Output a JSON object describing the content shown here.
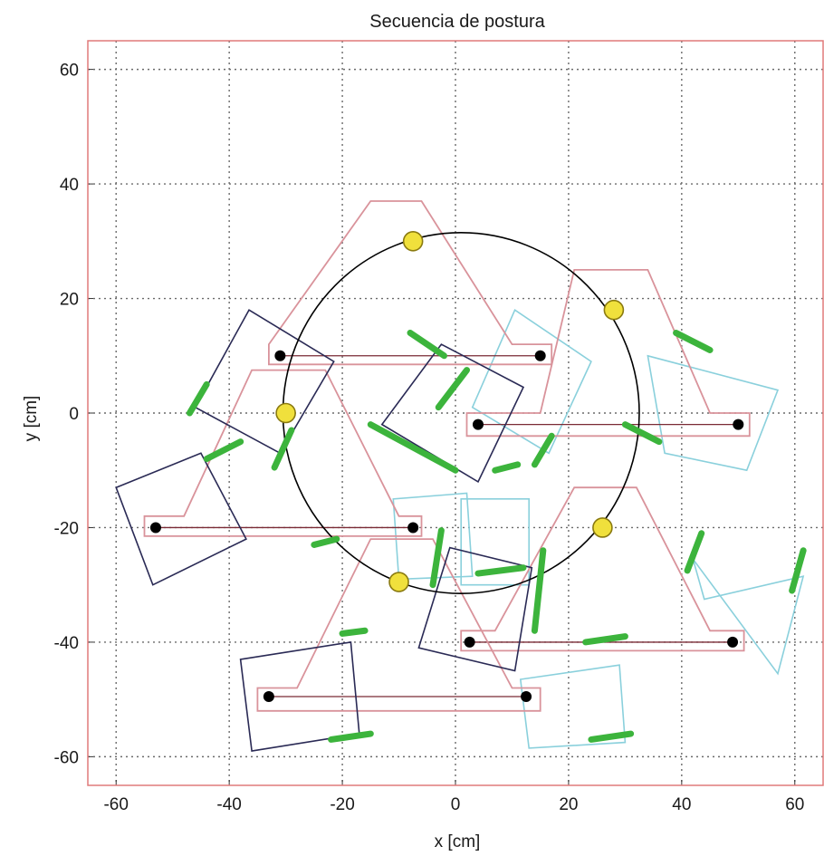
{
  "chart_data": {
    "type": "scatter",
    "title": "Secuencia de postura",
    "xlabel": "x [cm]",
    "ylabel": "y [cm]",
    "xlim": [
      -65,
      65
    ],
    "ylim": [
      -65,
      65
    ],
    "xticks": [
      -60,
      -40,
      -20,
      0,
      20,
      40,
      60
    ],
    "yticks": [
      -60,
      -40,
      -20,
      0,
      20,
      40,
      60
    ],
    "xtick_labels": [
      "-60",
      "-40",
      "-20",
      "0",
      "20",
      "40",
      "60"
    ],
    "ytick_labels": [
      "-60",
      "-40",
      "-20",
      "0",
      "20",
      "40",
      "60"
    ],
    "grid": true,
    "colors": {
      "frame": "#e07a7a",
      "body_outline": "#d9939b",
      "dark_square": "#2a2a55",
      "light_square": "#8ad0dc",
      "leg": "#3cb43c",
      "foot_marker": "#000000",
      "circle": "#000000",
      "circle_marker": "#f0e03c"
    },
    "reference_circle": {
      "center": [
        1,
        0
      ],
      "radius": 31.5
    },
    "circle_markers": [
      [
        -7.5,
        30
      ],
      [
        28,
        18
      ],
      [
        -30,
        0
      ],
      [
        26,
        -20
      ],
      [
        -10,
        -29.5
      ]
    ],
    "bodies": [
      {
        "outline": [
          [
            -33,
            12
          ],
          [
            -15,
            37
          ],
          [
            -6,
            37
          ],
          [
            10,
            12
          ],
          [
            17,
            12
          ],
          [
            17,
            8.5
          ],
          [
            -33,
            8.5
          ]
        ],
        "feet": [
          [
            -31,
            10
          ],
          [
            15,
            10
          ]
        ]
      },
      {
        "outline": [
          [
            -55,
            -18
          ],
          [
            -48,
            -18
          ],
          [
            -36,
            7.5
          ],
          [
            -23,
            7.5
          ],
          [
            -10,
            -18
          ],
          [
            -6,
            -18
          ],
          [
            -6,
            -21.5
          ],
          [
            -55,
            -21.5
          ]
        ],
        "feet": [
          [
            -53,
            -20
          ],
          [
            -7.5,
            -20
          ]
        ]
      },
      {
        "outline": [
          [
            2,
            0
          ],
          [
            15,
            0
          ],
          [
            21,
            25
          ],
          [
            34,
            25
          ],
          [
            45,
            0
          ],
          [
            52,
            0
          ],
          [
            52,
            -4
          ],
          [
            2,
            -4
          ]
        ],
        "feet": [
          [
            4,
            -2
          ],
          [
            50,
            -2
          ]
        ]
      },
      {
        "outline": [
          [
            1,
            -38
          ],
          [
            7,
            -38
          ],
          [
            21,
            -13
          ],
          [
            32,
            -13
          ],
          [
            45,
            -38
          ],
          [
            51,
            -38
          ],
          [
            51,
            -41.5
          ],
          [
            1,
            -41.5
          ]
        ],
        "feet": [
          [
            2.5,
            -40
          ],
          [
            49,
            -40
          ]
        ]
      },
      {
        "outline": [
          [
            -35,
            -48
          ],
          [
            -28,
            -48
          ],
          [
            -15,
            -22
          ],
          [
            -4,
            -22
          ],
          [
            10,
            -48
          ],
          [
            15,
            -48
          ],
          [
            15,
            -52
          ],
          [
            -35,
            -52
          ]
        ],
        "feet": [
          [
            -33,
            -49.5
          ],
          [
            12.5,
            -49.5
          ]
        ]
      }
    ],
    "dark_squares": [
      [
        [
          -36.5,
          18
        ],
        [
          -21.5,
          9
        ],
        [
          -31,
          -7
        ],
        [
          -46,
          1
        ]
      ],
      [
        [
          -13,
          -2
        ],
        [
          -2.5,
          12
        ],
        [
          12,
          4.5
        ],
        [
          4,
          -12
        ]
      ],
      [
        [
          -60,
          -13
        ],
        [
          -45,
          -7
        ],
        [
          -37,
          -22
        ],
        [
          -53.5,
          -30
        ]
      ],
      [
        [
          -6.5,
          -41
        ],
        [
          -1,
          -23.5
        ],
        [
          13.5,
          -27
        ],
        [
          10.5,
          -45
        ]
      ],
      [
        [
          -38,
          -43
        ],
        [
          -18.5,
          -40
        ],
        [
          -17,
          -56
        ],
        [
          -36,
          -59
        ]
      ]
    ],
    "light_squares": [
      [
        [
          1,
          -15
        ],
        [
          13,
          -15
        ],
        [
          13,
          -30
        ],
        [
          1,
          -30
        ]
      ],
      [
        [
          3,
          1
        ],
        [
          10.5,
          18
        ],
        [
          24,
          9
        ],
        [
          16.5,
          -7
        ]
      ],
      [
        [
          34,
          10
        ],
        [
          57,
          4
        ],
        [
          51.5,
          -10
        ],
        [
          37,
          -7
        ]
      ],
      [
        [
          11.5,
          -46.5
        ],
        [
          13,
          -58.5
        ],
        [
          30,
          -57.5
        ],
        [
          29,
          -44
        ]
      ],
      [
        [
          42,
          -25.5
        ],
        [
          44,
          -32.5
        ],
        [
          61.5,
          -28.5
        ],
        [
          57,
          -45.5
        ]
      ],
      [
        [
          -11,
          -15
        ],
        [
          -10,
          -29
        ],
        [
          3,
          -28.5
        ],
        [
          2,
          -14
        ]
      ]
    ],
    "legs": [
      [
        [
          -8,
          14
        ],
        [
          -2,
          10
        ]
      ],
      [
        [
          -3,
          1
        ],
        [
          2,
          7.5
        ]
      ],
      [
        [
          -15,
          -2
        ],
        [
          0,
          -10
        ]
      ],
      [
        [
          7,
          -10
        ],
        [
          11,
          -9
        ]
      ],
      [
        [
          14,
          -9
        ],
        [
          17,
          -4
        ]
      ],
      [
        [
          -47,
          0
        ],
        [
          -44,
          5
        ]
      ],
      [
        [
          -44,
          -8
        ],
        [
          -38,
          -5
        ]
      ],
      [
        [
          -32,
          -9.5
        ],
        [
          -29,
          -3
        ]
      ],
      [
        [
          -25,
          -23
        ],
        [
          -21,
          -22
        ]
      ],
      [
        [
          -4,
          -30
        ],
        [
          -2.5,
          -20.5
        ]
      ],
      [
        [
          4,
          -28
        ],
        [
          12,
          -27
        ]
      ],
      [
        [
          14,
          -38
        ],
        [
          15.5,
          -24
        ]
      ],
      [
        [
          -20,
          -38.5
        ],
        [
          -16,
          -38
        ]
      ],
      [
        [
          -22,
          -57
        ],
        [
          -15,
          -56
        ]
      ],
      [
        [
          23,
          -40
        ],
        [
          30,
          -39
        ]
      ],
      [
        [
          24,
          -57
        ],
        [
          31,
          -56
        ]
      ],
      [
        [
          30,
          -2
        ],
        [
          36,
          -5
        ]
      ],
      [
        [
          39,
          14
        ],
        [
          45,
          11
        ]
      ],
      [
        [
          41,
          -27.5
        ],
        [
          43.5,
          -21
        ]
      ],
      [
        [
          59.5,
          -31
        ],
        [
          61.5,
          -24
        ]
      ]
    ]
  }
}
